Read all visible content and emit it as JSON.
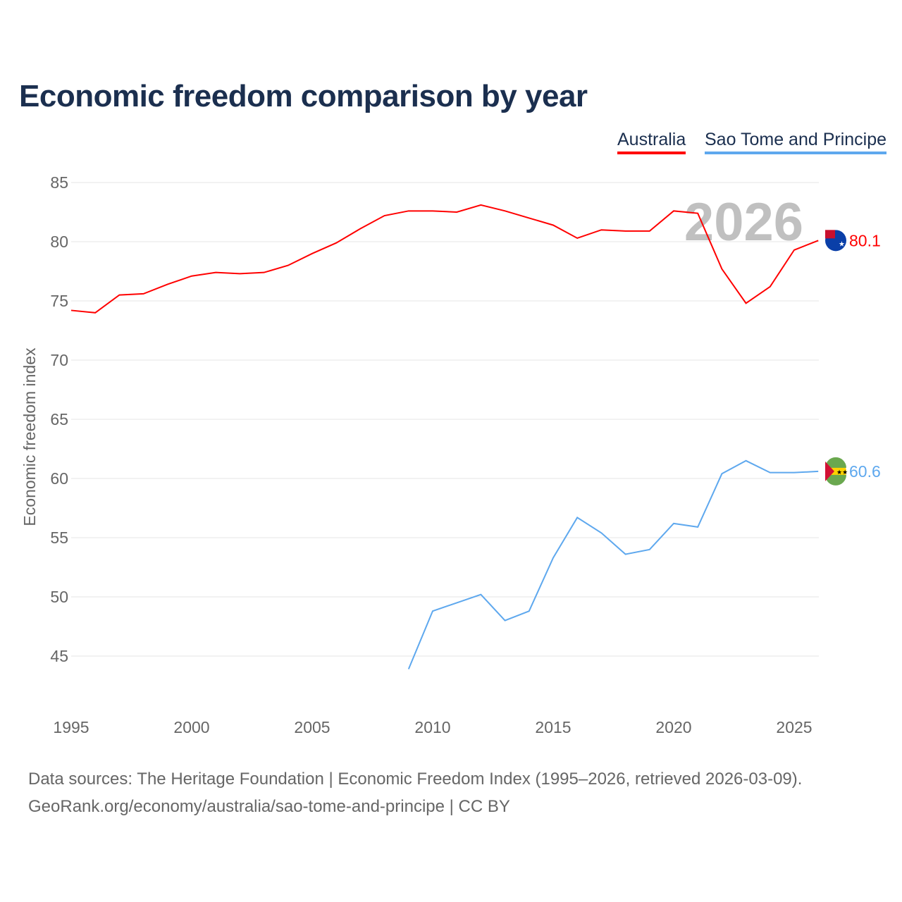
{
  "title": "Economic freedom comparison by year",
  "source_line1": "Data sources: The Heritage Foundation | Economic Freedom Index (1995–2026, retrieved 2026-03-09).",
  "source_line2": "GeoRank.org/economy/australia/sao-tome-and-principe | CC BY",
  "chart_data": {
    "type": "line",
    "title": "Economic freedom comparison by year",
    "xlabel": "",
    "ylabel": "Economic freedom index",
    "xlim": [
      1995,
      2026
    ],
    "ylim": [
      41,
      87
    ],
    "yticks": [
      45,
      50,
      55,
      60,
      65,
      70,
      75,
      80,
      85
    ],
    "xticks": [
      1995,
      2000,
      2005,
      2010,
      2015,
      2020,
      2025
    ],
    "year_watermark": "2026",
    "legend_position": "top-right",
    "series": [
      {
        "name": "Australia",
        "color": "#ff0000",
        "end_label": "80.1",
        "flag": "australia-flag",
        "x": [
          1995,
          1996,
          1997,
          1998,
          1999,
          2000,
          2001,
          2002,
          2003,
          2004,
          2005,
          2006,
          2007,
          2008,
          2009,
          2010,
          2011,
          2012,
          2013,
          2014,
          2015,
          2016,
          2017,
          2018,
          2019,
          2020,
          2021,
          2022,
          2023,
          2024,
          2025,
          2026
        ],
        "values": [
          74.2,
          74.0,
          75.5,
          75.6,
          76.4,
          77.1,
          77.4,
          77.3,
          77.4,
          78.0,
          79.0,
          79.9,
          81.1,
          82.2,
          82.6,
          82.6,
          82.5,
          83.1,
          82.6,
          82.0,
          81.4,
          80.3,
          81.0,
          80.9,
          80.9,
          82.6,
          82.4,
          77.7,
          74.8,
          76.2,
          79.3,
          80.1
        ]
      },
      {
        "name": "Sao Tome and Principe",
        "color": "#5ea8ee",
        "end_label": "60.6",
        "flag": "sao-tome-flag",
        "x": [
          2009,
          2010,
          2011,
          2012,
          2013,
          2014,
          2015,
          2016,
          2017,
          2018,
          2019,
          2020,
          2021,
          2022,
          2023,
          2024,
          2025,
          2026
        ],
        "values": [
          43.9,
          48.8,
          49.5,
          50.2,
          48.0,
          48.8,
          53.3,
          56.7,
          55.4,
          53.6,
          54.0,
          56.2,
          55.9,
          60.4,
          61.5,
          60.5,
          60.5,
          60.6
        ]
      }
    ]
  }
}
